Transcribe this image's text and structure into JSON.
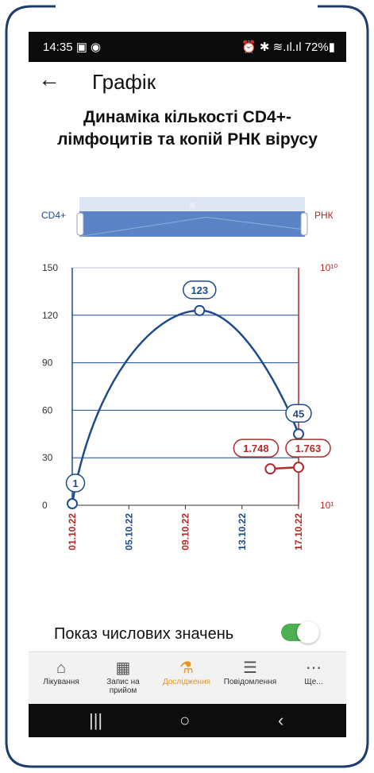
{
  "status": {
    "time": "14:35 ▣ ◉",
    "right": "⏰ ✱ ≋.ıl.ıl 72%▮"
  },
  "appbar": {
    "back_icon": "←",
    "title": "Графік"
  },
  "chart_title": [
    "Динаміка кількості CD4+-",
    "лімфоцитів та копій РНК вірусу"
  ],
  "chart_data": {
    "type": "line",
    "x": [
      "01.10.22",
      "05.10.22",
      "09.10.22",
      "13.10.22",
      "17.10.22"
    ],
    "left_axis_label": "CD4+",
    "right_axis_label": "РНК",
    "ylim": [
      0,
      150
    ],
    "yticks": [
      "150",
      "120",
      "90",
      "60",
      "30",
      "0"
    ],
    "y2ticks": [
      "10¹⁰",
      "10¹"
    ],
    "series": [
      {
        "name": "CD4+",
        "color": "#1e4b8c",
        "points": [
          {
            "x": "01.10.22",
            "y": 1
          },
          {
            "x": "10.10.22",
            "y": 123
          },
          {
            "x": "17.10.22",
            "y": 45
          }
        ]
      },
      {
        "name": "РНК",
        "color": "#b02a2a",
        "points": [
          {
            "x": "15.10.22",
            "y": 1.748
          },
          {
            "x": "17.10.22",
            "y": 1.763
          }
        ]
      }
    ],
    "grid": true
  },
  "toggle": {
    "label": "Показ числових значень",
    "on": true
  },
  "nav": [
    {
      "label": "Лікування",
      "icon": "⌂"
    },
    {
      "label": "Запис на прийом",
      "icon": "▦"
    },
    {
      "label": "Дослідження",
      "icon": "⚗"
    },
    {
      "label": "Повідомлення",
      "icon": "☰"
    },
    {
      "label": "Ще...",
      "icon": "⋯"
    }
  ],
  "system": {
    "recent": "|||",
    "home": "○",
    "back": "‹"
  }
}
